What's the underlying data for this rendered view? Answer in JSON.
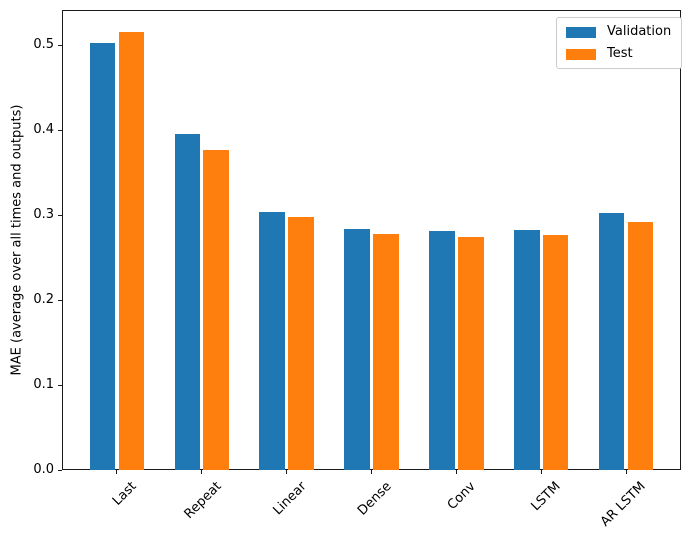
{
  "chart_data": {
    "type": "bar",
    "title": "",
    "xlabel": "",
    "ylabel": "MAE (average over all times and outputs)",
    "categories": [
      "Last",
      "Repeat",
      "Linear",
      "Dense",
      "Conv",
      "LSTM",
      "AR LSTM"
    ],
    "series": [
      {
        "name": "Validation",
        "color": "#1f77b4",
        "values": [
          0.502,
          0.395,
          0.303,
          0.283,
          0.281,
          0.282,
          0.302
        ]
      },
      {
        "name": "Test",
        "color": "#ff7f0e",
        "values": [
          0.515,
          0.377,
          0.298,
          0.278,
          0.274,
          0.277,
          0.292
        ]
      }
    ],
    "yticks": [
      0.0,
      0.1,
      0.2,
      0.3,
      0.4,
      0.5
    ],
    "ytick_labels": [
      "0.0",
      "0.1",
      "0.2",
      "0.3",
      "0.4",
      "0.5"
    ],
    "ylim": [
      0,
      0.5412
    ],
    "xtick_rotation": 45,
    "bar_width": 0.3,
    "bar_offsets": [
      -0.17,
      0.17
    ],
    "grid": false,
    "legend": {
      "position": "upper right",
      "entries": [
        "Validation",
        "Test"
      ]
    }
  }
}
